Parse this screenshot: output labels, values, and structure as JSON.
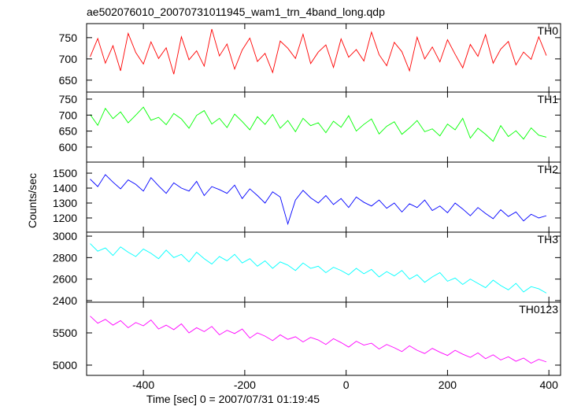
{
  "chart_data": {
    "type": "line",
    "title": "ae502076010_20070731011945_wam1_trn_4band_long.qdp",
    "xlabel": "Time [sec] 0 = 2007/07/31 01:19:45",
    "ylabel": "Counts/sec",
    "xlim": [
      -512,
      423
    ],
    "xticks": [
      -400,
      -200,
      0,
      200,
      400
    ],
    "x": [
      -505,
      -490,
      -475,
      -460,
      -445,
      -430,
      -415,
      -400,
      -385,
      -370,
      -355,
      -340,
      -325,
      -310,
      -295,
      -280,
      -265,
      -250,
      -235,
      -220,
      -205,
      -190,
      -175,
      -160,
      -145,
      -130,
      -115,
      -100,
      -85,
      -70,
      -55,
      -40,
      -25,
      -10,
      5,
      20,
      35,
      50,
      65,
      80,
      95,
      110,
      125,
      140,
      155,
      170,
      185,
      200,
      215,
      230,
      245,
      260,
      275,
      290,
      305,
      320,
      335,
      350,
      365,
      380,
      395
    ],
    "series": [
      {
        "name": "TH0",
        "color": "#ff0000",
        "ylim": [
          622,
          783
        ],
        "yticks": [
          650,
          700,
          750
        ],
        "values": [
          705,
          748,
          690,
          731,
          672,
          760,
          715,
          688,
          740,
          701,
          726,
          664,
          752,
          698,
          719,
          683,
          770,
          707,
          735,
          676,
          721,
          749,
          694,
          713,
          668,
          742,
          725,
          701,
          758,
          689,
          716,
          733,
          680,
          747,
          704,
          722,
          695,
          763,
          710,
          684,
          739,
          717,
          672,
          751,
          700,
          728,
          693,
          745,
          711,
          679,
          734,
          706,
          757,
          690,
          723,
          741,
          686,
          716,
          699,
          752,
          708
        ]
      },
      {
        "name": "TH1",
        "color": "#00ff00",
        "ylim": [
          553,
          772
        ],
        "yticks": [
          600,
          650,
          700,
          750
        ],
        "values": [
          702,
          668,
          721,
          689,
          710,
          676,
          700,
          725,
          684,
          693,
          670,
          705,
          688,
          659,
          699,
          714,
          672,
          690,
          661,
          703,
          680,
          654,
          695,
          671,
          702,
          659,
          683,
          648,
          690,
          667,
          676,
          645,
          681,
          662,
          698,
          650,
          671,
          688,
          641,
          665,
          679,
          640,
          660,
          683,
          648,
          657,
          635,
          672,
          654,
          690,
          628,
          659,
          640,
          618,
          667,
          633,
          651,
          625,
          660,
          637,
          631
        ]
      },
      {
        "name": "TH2",
        "color": "#0000ff",
        "ylim": [
          1105,
          1574
        ],
        "yticks": [
          1200,
          1300,
          1400,
          1500
        ],
        "values": [
          1460,
          1410,
          1490,
          1440,
          1395,
          1455,
          1425,
          1380,
          1470,
          1415,
          1365,
          1435,
          1400,
          1380,
          1445,
          1350,
          1410,
          1390,
          1365,
          1420,
          1330,
          1395,
          1350,
          1300,
          1375,
          1340,
          1160,
          1320,
          1385,
          1335,
          1300,
          1350,
          1290,
          1330,
          1270,
          1340,
          1305,
          1280,
          1320,
          1265,
          1300,
          1240,
          1295,
          1270,
          1320,
          1250,
          1280,
          1235,
          1300,
          1260,
          1215,
          1270,
          1230,
          1195,
          1255,
          1210,
          1240,
          1180,
          1225,
          1200,
          1215
        ]
      },
      {
        "name": "TH3",
        "color": "#00ffff",
        "ylim": [
          2385,
          3037
        ],
        "yticks": [
          2400,
          2600,
          2800,
          3000
        ],
        "values": [
          2930,
          2860,
          2890,
          2820,
          2900,
          2850,
          2810,
          2880,
          2840,
          2790,
          2870,
          2800,
          2830,
          2760,
          2850,
          2790,
          2740,
          2810,
          2770,
          2830,
          2750,
          2790,
          2720,
          2770,
          2700,
          2760,
          2730,
          2680,
          2750,
          2700,
          2720,
          2660,
          2710,
          2680,
          2640,
          2700,
          2650,
          2690,
          2620,
          2670,
          2630,
          2680,
          2600,
          2640,
          2570,
          2620,
          2660,
          2580,
          2610,
          2550,
          2600,
          2560,
          2520,
          2590,
          2540,
          2500,
          2560,
          2480,
          2530,
          2510,
          2470
        ]
      },
      {
        "name": "TH0123",
        "color": "#ff00ff",
        "ylim": [
          4841,
          5976
        ],
        "yticks": [
          5000,
          5500
        ],
        "values": [
          5760,
          5650,
          5710,
          5620,
          5690,
          5580,
          5660,
          5610,
          5700,
          5560,
          5620,
          5550,
          5640,
          5500,
          5580,
          5520,
          5600,
          5470,
          5540,
          5490,
          5560,
          5420,
          5500,
          5450,
          5380,
          5470,
          5400,
          5440,
          5360,
          5430,
          5390,
          5320,
          5410,
          5350,
          5280,
          5370,
          5310,
          5340,
          5250,
          5320,
          5270,
          5210,
          5300,
          5230,
          5180,
          5260,
          5200,
          5150,
          5230,
          5170,
          5120,
          5190,
          5100,
          5160,
          5080,
          5130,
          5060,
          5110,
          5030,
          5090,
          5050
        ]
      }
    ]
  }
}
